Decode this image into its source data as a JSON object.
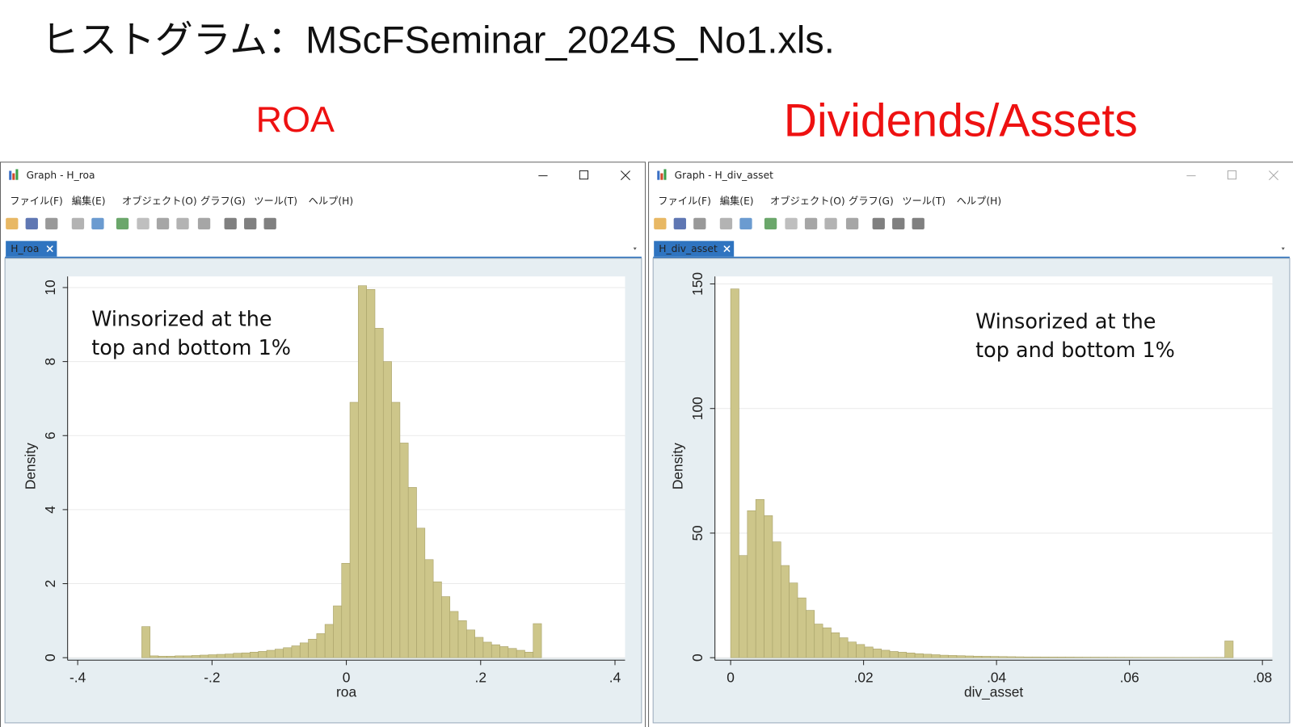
{
  "title": "ヒストグラム：MScFSeminar_2024S_No1.xls.",
  "windows": [
    {
      "label": "ROA",
      "title": "Graph - H_roa",
      "menu": [
        "ファイル(F)",
        "編集(E)",
        "オブジェクト(O)",
        "グラフ(G)",
        "ツール(T)",
        "ヘルプ(H)"
      ],
      "tab": "H_roa"
    },
    {
      "label": "Dividends/Assets",
      "title": "Graph - H_div_asset",
      "menu": [
        "ファイル(F)",
        "編集(E)",
        "オブジェクト(O)",
        "グラフ(G)",
        "ツール(T)",
        "ヘルプ(H)"
      ],
      "tab": "H_div_asset"
    }
  ],
  "chart_data": [
    {
      "type": "histogram",
      "xlabel": "roa",
      "ylabel": "Density",
      "annotation": [
        "Winsorized at the",
        "top and bottom 1%"
      ],
      "color": "#cdc68a",
      "edgecolor": "#a9a26a",
      "grid": true,
      "bins": [
        -0.3046,
        -0.2922,
        -0.2798,
        -0.2674,
        -0.255,
        -0.2426,
        -0.2302,
        -0.2178,
        -0.2054,
        -0.193,
        -0.1806,
        -0.1682,
        -0.1558,
        -0.1434,
        -0.131,
        -0.1186,
        -0.1062,
        -0.0938,
        -0.0814,
        -0.069,
        -0.0566,
        -0.0442,
        -0.0318,
        -0.0194,
        -0.007,
        0.0054,
        0.0178,
        0.0302,
        0.0426,
        0.055,
        0.0674,
        0.0798,
        0.0922,
        0.1046,
        0.117,
        0.1294,
        0.1418,
        0.1542,
        0.1666,
        0.179,
        0.1914,
        0.2038,
        0.2162,
        0.2286,
        0.241,
        0.2534,
        0.2658,
        0.2782,
        0.2906
      ],
      "values": [
        0.84,
        0.05,
        0.04,
        0.04,
        0.05,
        0.05,
        0.06,
        0.07,
        0.08,
        0.09,
        0.1,
        0.12,
        0.13,
        0.15,
        0.17,
        0.2,
        0.23,
        0.27,
        0.32,
        0.4,
        0.5,
        0.65,
        0.9,
        1.4,
        2.55,
        6.9,
        10.05,
        9.95,
        8.9,
        8.0,
        6.9,
        5.8,
        4.6,
        3.5,
        2.65,
        2.05,
        1.65,
        1.25,
        1.0,
        0.75,
        0.55,
        0.42,
        0.35,
        0.3,
        0.25,
        0.2,
        0.15,
        0.92
      ],
      "xlim": [
        -0.415,
        0.415
      ],
      "ylim": [
        0,
        10.3
      ],
      "xticks": [
        {
          "value": -0.4,
          "label": "-.4"
        },
        {
          "value": -0.2,
          "label": "-.2"
        },
        0,
        {
          "value": 0.2,
          "label": ".2"
        },
        {
          "value": 0.4,
          "label": ".4"
        }
      ],
      "yticks": [
        0,
        2,
        4,
        6,
        8,
        10
      ]
    },
    {
      "type": "histogram",
      "xlabel": "div_asset",
      "ylabel": "Density",
      "annotation": [
        "Winsorized at the",
        "top and bottom 1%"
      ],
      "color": "#cdc68a",
      "edgecolor": "#a9a26a",
      "grid": true,
      "bins": [
        0,
        0.00126,
        0.00252,
        0.00378,
        0.00504,
        0.0063,
        0.00756,
        0.00882,
        0.01008,
        0.01134,
        0.0126,
        0.01386,
        0.01512,
        0.01638,
        0.01764,
        0.0189,
        0.02016,
        0.02142,
        0.02268,
        0.02394,
        0.0252,
        0.02646,
        0.02772,
        0.02898,
        0.03024,
        0.0315,
        0.03276,
        0.03402,
        0.03528,
        0.03654,
        0.0378,
        0.03906,
        0.04032,
        0.04158,
        0.04284,
        0.0441,
        0.04536,
        0.04662,
        0.04788,
        0.04914,
        0.0504,
        0.05166,
        0.05292,
        0.05418,
        0.05544,
        0.0567,
        0.05796,
        0.05922,
        0.06048,
        0.06174,
        0.063,
        0.06426,
        0.06552,
        0.06678,
        0.06804,
        0.0693,
        0.07056,
        0.07182,
        0.07308,
        0.07434,
        0.0756
      ],
      "values": [
        148,
        41,
        59,
        63.5,
        57,
        46.5,
        37,
        30,
        24,
        19,
        13.5,
        12,
        10,
        8,
        6.3,
        5.3,
        4.3,
        3.5,
        3,
        2.5,
        2.2,
        1.9,
        1.6,
        1.4,
        1.2,
        1,
        0.9,
        0.8,
        0.7,
        0.6,
        0.55,
        0.5,
        0.45,
        0.4,
        0.35,
        0.3,
        0.3,
        0.28,
        0.26,
        0.25,
        0.24,
        0.22,
        0.2,
        0.2,
        0.18,
        0.17,
        0.16,
        0.15,
        0.14,
        0.13,
        0.12,
        0.12,
        0.11,
        0.1,
        0.1,
        0.1,
        0.1,
        0.1,
        0.1,
        6.7
      ],
      "xlim": [
        -0.00236,
        0.0815
      ],
      "ylim": [
        0,
        153
      ],
      "xticks": [
        0,
        {
          "value": 0.02,
          "label": ".02"
        },
        {
          "value": 0.04,
          "label": ".04"
        },
        {
          "value": 0.06,
          "label": ".06"
        },
        {
          "value": 0.08,
          "label": ".08"
        }
      ],
      "yticks": [
        0,
        50,
        100,
        150
      ]
    }
  ]
}
